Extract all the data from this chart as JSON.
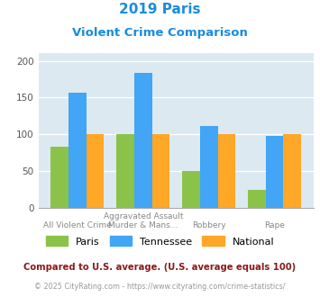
{
  "title_line1": "2019 Paris",
  "title_line2": "Violent Crime Comparison",
  "top_labels": [
    "",
    "Aggravated Assault",
    "",
    ""
  ],
  "bot_labels": [
    "All Violent Crime",
    "Murder & Mans...",
    "Robbery",
    "Rape"
  ],
  "paris": [
    83,
    100,
    50,
    25
  ],
  "tennessee": [
    157,
    183,
    111,
    98
  ],
  "national": [
    100,
    100,
    100,
    100
  ],
  "paris_color": "#8bc34a",
  "tennessee_color": "#42a5f5",
  "national_color": "#ffa726",
  "title_color": "#1a8cdd",
  "plot_bg_color": "#dce9f0",
  "ylim": [
    0,
    210
  ],
  "yticks": [
    0,
    50,
    100,
    150,
    200
  ],
  "footnote1": "Compared to U.S. average. (U.S. average equals 100)",
  "footnote2": "© 2025 CityRating.com - https://www.cityrating.com/crime-statistics/",
  "footnote1_color": "#8b1a1a",
  "footnote2_color": "#999999",
  "label_color": "#888888"
}
